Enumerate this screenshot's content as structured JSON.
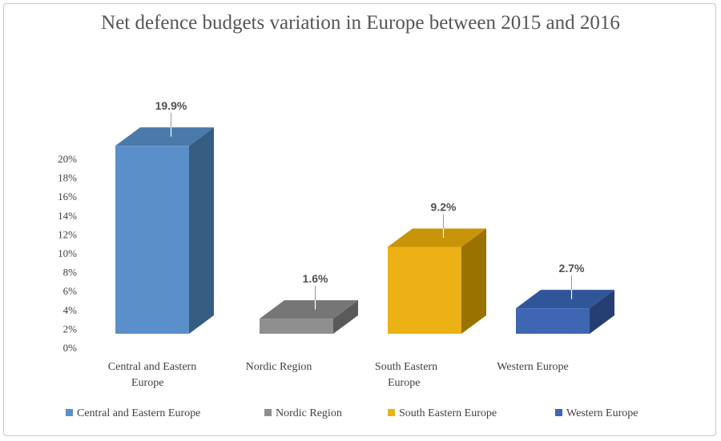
{
  "chart_data": {
    "type": "bar",
    "title": "Net defence budgets variation in Europe between 2015 and 2016",
    "xlabel": "",
    "ylabel": "",
    "ylim": [
      0,
      20
    ],
    "y_ticks": [
      "0%",
      "2%",
      "4%",
      "6%",
      "8%",
      "10%",
      "12%",
      "14%",
      "16%",
      "18%",
      "20%"
    ],
    "categories": [
      [
        "Central and Eastern",
        "Europe"
      ],
      [
        "Nordic Region"
      ],
      [
        "South Eastern",
        "Europe"
      ],
      [
        "Western Europe"
      ]
    ],
    "values": [
      19.9,
      1.6,
      9.2,
      2.7
    ],
    "data_labels": [
      "19.9%",
      "1.6%",
      "9.2%",
      "2.7%"
    ],
    "legend": [
      "Central and Eastern Europe",
      "Nordic Region",
      "South Eastern Europe",
      "Western Europe"
    ],
    "legend_position": "bottom",
    "colors": [
      {
        "front": "#5b8fc9",
        "side": "#355d82",
        "top": "#4a7aaa"
      },
      {
        "front": "#8f8f8f",
        "side": "#5a5a5a",
        "top": "#767676"
      },
      {
        "front": "#ecb114",
        "side": "#9a7200",
        "top": "#c8940a"
      },
      {
        "front": "#3e66b2",
        "side": "#253f73",
        "top": "#30569a"
      }
    ],
    "legend_colors": [
      "#5b8fc9",
      "#8f8f8f",
      "#ecb114",
      "#3e66b2"
    ]
  }
}
